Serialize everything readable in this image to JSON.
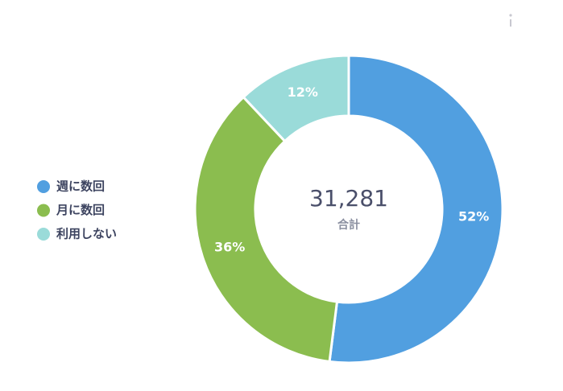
{
  "chart_data": {
    "type": "pie",
    "donut": true,
    "categories": [
      "週に数回",
      "月に数回",
      "利用しない"
    ],
    "values": [
      52,
      36,
      12
    ],
    "value_labels": [
      "52%",
      "36%",
      "12%"
    ],
    "colors": [
      "#519fe0",
      "#8bbd4f",
      "#9adbd9"
    ],
    "total": {
      "value": 31281,
      "label": "31,281"
    },
    "total_label": "合計",
    "legend": "left"
  }
}
